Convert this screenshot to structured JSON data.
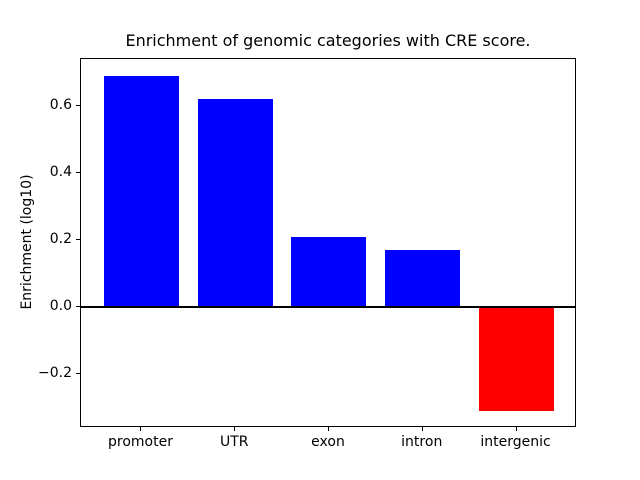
{
  "chart_data": {
    "type": "bar",
    "title": "Enrichment of genomic categories with CRE score.",
    "xlabel": "",
    "ylabel": "Enrichment (log10)",
    "categories": [
      "promoter",
      "UTR",
      "exon",
      "intron",
      "intergenic"
    ],
    "values": [
      0.69,
      0.62,
      0.21,
      0.17,
      -0.31
    ],
    "bar_colors": [
      "#0000ff",
      "#0000ff",
      "#0000ff",
      "#0000ff",
      "#ff0000"
    ],
    "positive_color": "#0000ff",
    "negative_color": "#ff0000",
    "bar_width": 0.8,
    "xlim": [
      -0.645,
      4.645
    ],
    "ylim": [
      -0.36,
      0.74
    ],
    "yticks": [
      {
        "value": 0.6,
        "label": "0.6"
      },
      {
        "value": 0.4,
        "label": "0.4"
      },
      {
        "value": 0.2,
        "label": "0.2"
      },
      {
        "value": 0.0,
        "label": "0.0"
      },
      {
        "value": -0.2,
        "label": "−0.2"
      }
    ],
    "zero_line": true,
    "grid": false,
    "legend_position": "none",
    "plot_background": "#ffffff",
    "axis_color": "#000000"
  }
}
